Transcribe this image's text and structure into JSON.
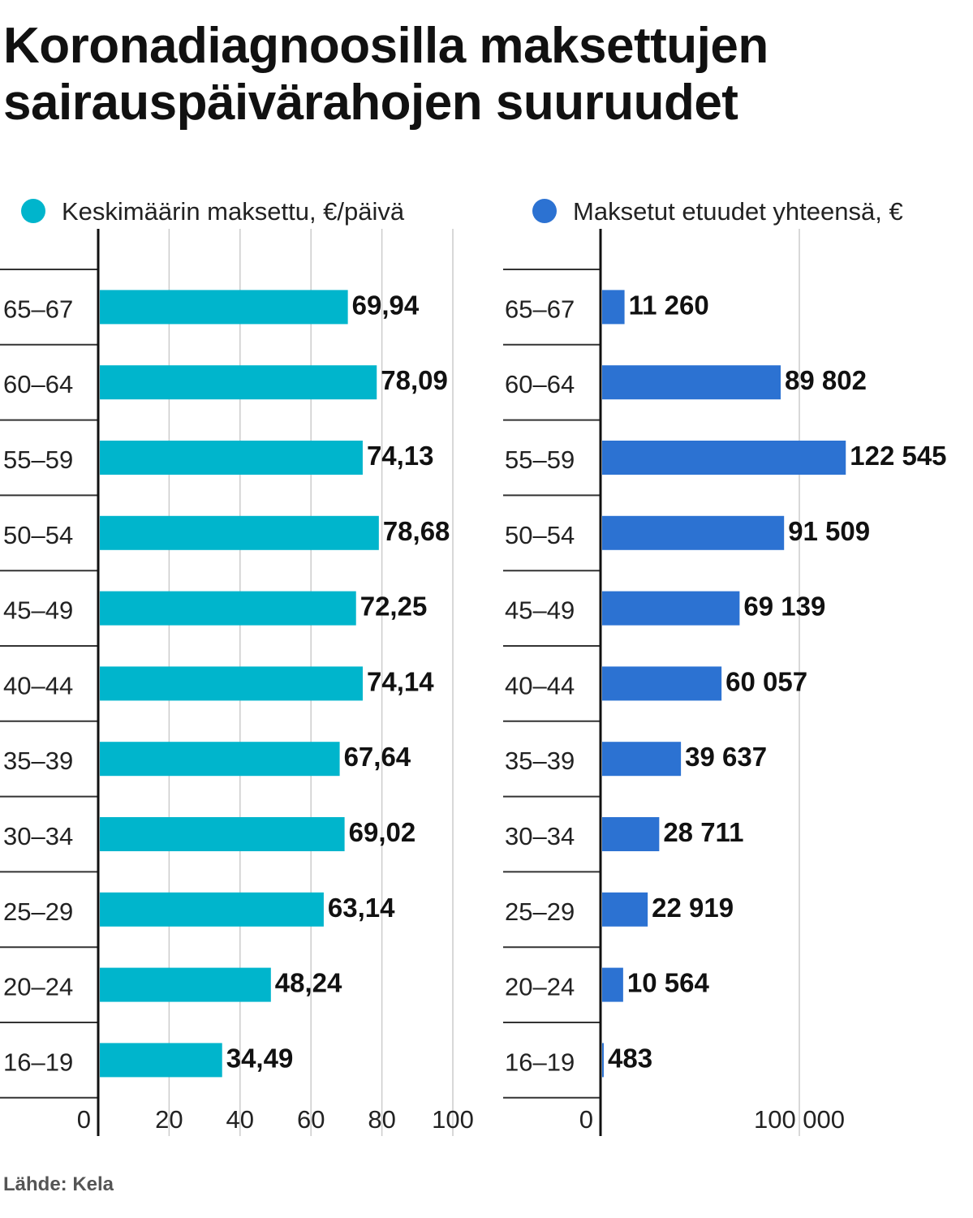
{
  "title_lines": [
    "Koronadiagnoosilla maksettujen",
    "sairauspäivärahojen suuruudet"
  ],
  "source": "Lähde: Kela",
  "colors": {
    "left": "#00b5cc",
    "right": "#2c72d2"
  },
  "chart_data": [
    {
      "type": "bar",
      "orientation": "horizontal",
      "legend": "Keskimäärin maksettu, €/päivä",
      "color": "#00b5cc",
      "categories": [
        "65–67",
        "60–64",
        "55–59",
        "50–54",
        "45–49",
        "40–44",
        "35–39",
        "30–34",
        "25–29",
        "20–24",
        "16–19"
      ],
      "values": [
        69.94,
        78.09,
        74.13,
        78.68,
        72.25,
        74.14,
        67.64,
        69.02,
        63.14,
        48.24,
        34.49
      ],
      "value_labels": [
        "69,94",
        "78,09",
        "74,13",
        "78,68",
        "72,25",
        "74,14",
        "67,64",
        "69,02",
        "63,14",
        "48,24",
        "34,49"
      ],
      "xlim": [
        0,
        100
      ],
      "ticks": [
        0,
        20,
        40,
        60,
        80,
        100
      ],
      "tick_labels": [
        "0",
        "20",
        "40",
        "60",
        "80",
        "100"
      ]
    },
    {
      "type": "bar",
      "orientation": "horizontal",
      "legend": "Maksetut etuudet yhteensä, €",
      "color": "#2c72d2",
      "categories": [
        "65–67",
        "60–64",
        "55–59",
        "50–54",
        "45–49",
        "40–44",
        "35–39",
        "30–34",
        "25–29",
        "20–24",
        "16–19"
      ],
      "values": [
        11260,
        89802,
        122545,
        91509,
        69139,
        60057,
        39637,
        28711,
        22919,
        10564,
        483
      ],
      "value_labels": [
        "11 260",
        "89 802",
        "122 545",
        "91 509",
        "69 139",
        "60 057",
        "39 637",
        "28 711",
        "22 919",
        "10 564",
        "483"
      ],
      "xlim": [
        0,
        100000
      ],
      "ticks": [
        0,
        100000
      ],
      "tick_labels": [
        "0",
        "100 000"
      ]
    }
  ]
}
